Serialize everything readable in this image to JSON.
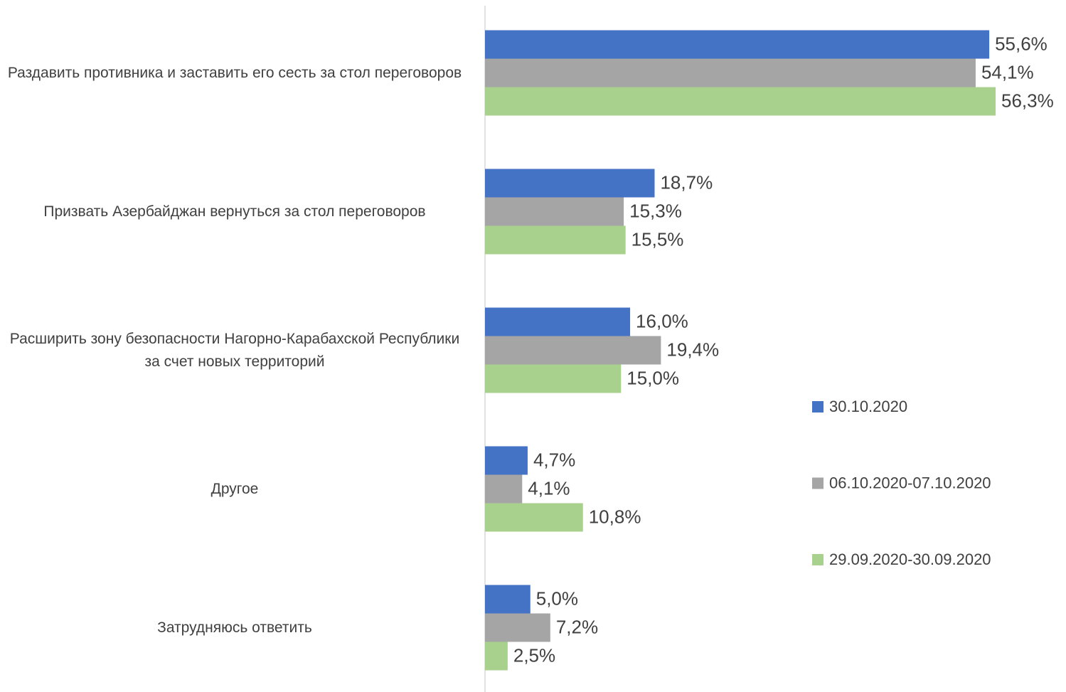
{
  "chart_data": {
    "type": "bar",
    "orientation": "horizontal",
    "categories": [
      "Раздавить противника и заставить его сесть за стол переговоров",
      "Призвать Азербайджан вернуться за стол переговоров",
      "Расширить зону безопасности Нагорно-Карабахской Республики за счет новых территорий",
      "Другое",
      "Затрудняюсь ответить"
    ],
    "series": [
      {
        "name": "30.10.2020",
        "color": "#4472c4",
        "values": [
          55.6,
          18.7,
          16.0,
          4.7,
          5.0
        ],
        "value_labels": [
          "55,6%",
          "18,7%",
          "16,0%",
          "4,7%",
          "5,0%"
        ]
      },
      {
        "name": "06.10.2020-07.10.2020",
        "color": "#a5a5a5",
        "values": [
          54.1,
          15.3,
          19.4,
          4.1,
          7.2
        ],
        "value_labels": [
          "54,1%",
          "15,3%",
          "19,4%",
          "4,1%",
          "7,2%"
        ]
      },
      {
        "name": "29.09.2020-30.09.2020",
        "color": "#a9d18e",
        "values": [
          56.3,
          15.5,
          15.0,
          10.8,
          2.5
        ],
        "value_labels": [
          "56,3%",
          "15,5%",
          "15,0%",
          "10,8%",
          "2,5%"
        ]
      }
    ],
    "legend": "right"
  }
}
